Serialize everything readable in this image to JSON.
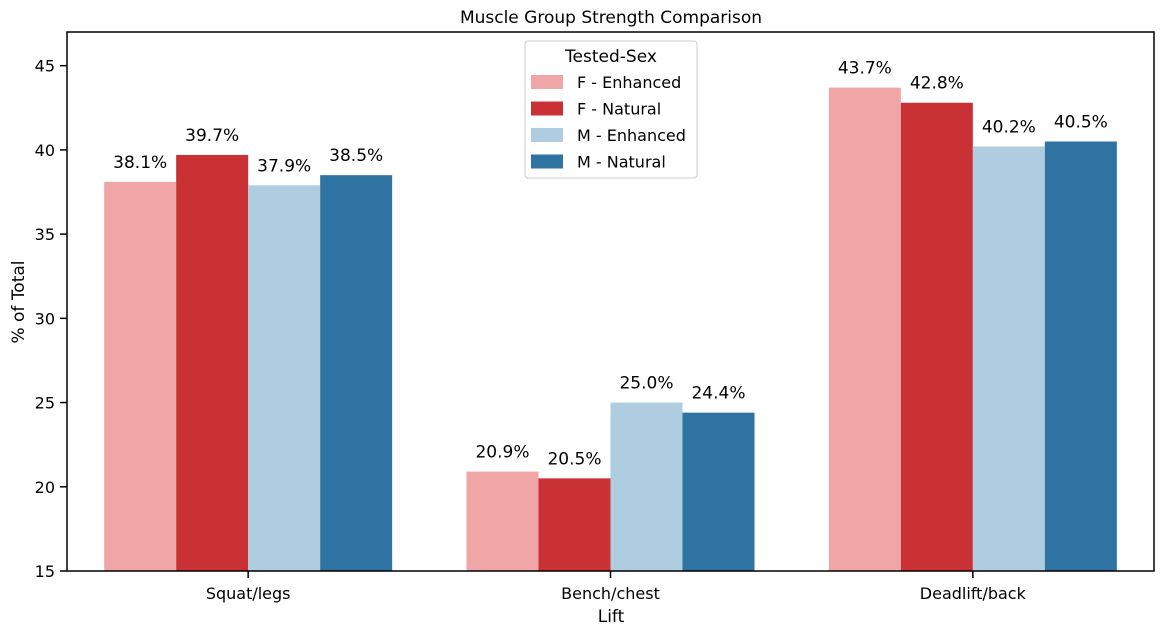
{
  "chart_data": {
    "type": "bar",
    "title": "Muscle Group Strength Comparison",
    "xlabel": "Lift",
    "ylabel": "% of Total",
    "ylim": [
      15,
      47
    ],
    "yticks": [
      15,
      20,
      25,
      30,
      35,
      40,
      45
    ],
    "categories": [
      "Squat/legs",
      "Bench/chest",
      "Deadlift/back"
    ],
    "legend_title": "Tested-Sex",
    "legend_position": "top-center",
    "grid": false,
    "series": [
      {
        "name": "F - Enhanced",
        "color": "#f0a6a6",
        "values": [
          38.1,
          20.9,
          43.7
        ],
        "labels": [
          "38.1%",
          "20.9%",
          "43.7%"
        ]
      },
      {
        "name": "F - Natural",
        "color": "#c93134",
        "values": [
          39.7,
          20.5,
          42.8
        ],
        "labels": [
          "39.7%",
          "20.5%",
          "42.8%"
        ]
      },
      {
        "name": "M - Enhanced",
        "color": "#aecde0",
        "values": [
          37.9,
          25.0,
          40.2
        ],
        "labels": [
          "37.9%",
          "25.0%",
          "40.2%"
        ]
      },
      {
        "name": "M - Natural",
        "color": "#2e73a2",
        "values": [
          38.5,
          24.4,
          40.5
        ],
        "labels": [
          "38.5%",
          "24.4%",
          "40.5%"
        ]
      }
    ]
  }
}
